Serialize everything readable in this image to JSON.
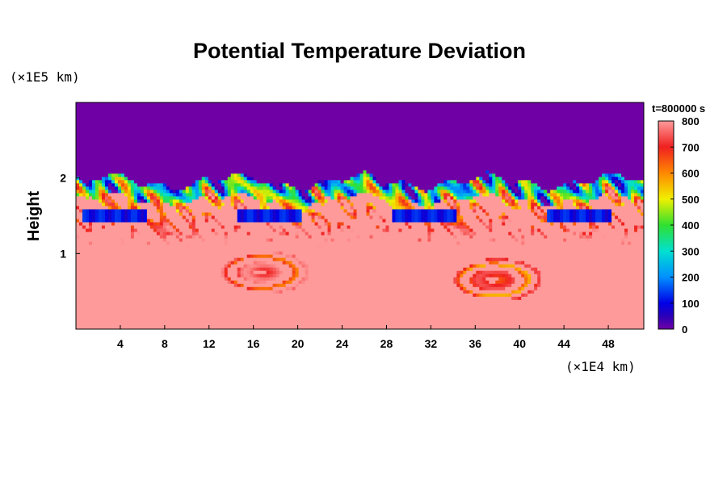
{
  "chart_data": {
    "type": "heatmap",
    "title": "Potential Temperature Deviation",
    "ylabel": "Height",
    "x_unit_label": "(×1E4 km)",
    "y_unit_label": "(×1E5 km)",
    "time_label": "t=800000 s",
    "xlim": [
      0,
      51.2
    ],
    "ylim": [
      0,
      3.0
    ],
    "x_ticks": [
      4,
      8,
      12,
      16,
      20,
      24,
      28,
      32,
      36,
      40,
      44,
      48
    ],
    "y_ticks": [
      1,
      2
    ],
    "colorbar": {
      "min": 0,
      "max": 800,
      "ticks": [
        0,
        100,
        200,
        300,
        400,
        500,
        600,
        700,
        800
      ]
    },
    "fields": {
      "upper_uniform_value": 0,
      "upper_layer_floor_height": 1.95,
      "lower_uniform_value": 800,
      "mixing_zone_height_range": [
        1.0,
        2.0
      ],
      "plume_features": [
        {
          "x_center": 17,
          "y_center": 0.75,
          "value": 700
        },
        {
          "x_center": 38,
          "y_center": 0.65,
          "value": 650
        }
      ]
    },
    "colors": {
      "0": "#6f00a6",
      "50": "#2a00b8",
      "100": "#0000e6",
      "200": "#0090ff",
      "300": "#00e0d0",
      "400": "#30e030",
      "500": "#f0f000",
      "600": "#ff8800",
      "700": "#f02020",
      "800": "#ff9a9a"
    }
  }
}
